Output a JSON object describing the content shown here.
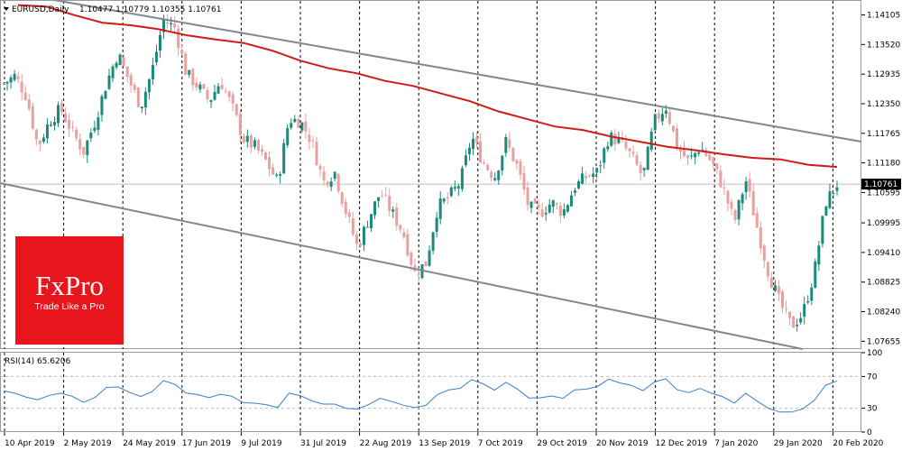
{
  "header": {
    "symbol": "EURUSD,Daily",
    "ohlc": "1.10477 1.10779 1.10355 1.10761"
  },
  "rsi_label": "RSI(14) 65.6206",
  "current_price_label": "1.10761",
  "logo": {
    "name": "FxPro",
    "tagline": "Trade Like a Pro",
    "color": "#e8161c"
  },
  "colors": {
    "bull": "#1a8a7a",
    "bear": "#e8a0a0",
    "ma": "#d11a1a",
    "channel": "#7f8791",
    "rsi": "#3b7fc4"
  },
  "chart_data": [
    {
      "type": "candlestick",
      "x_tick_labels": [
        "10 Apr 2019",
        "2 May 2019",
        "24 May 2019",
        "17 Jun 2019",
        "9 Jul 2019",
        "31 Jul 2019",
        "22 Aug 2019",
        "13 Sep 2019",
        "7 Oct 2019",
        "29 Oct 2019",
        "20 Nov 2019",
        "12 Dec 2019",
        "7 Jan 2020",
        "29 Jan 2020",
        "20 Feb 2020"
      ],
      "y_tick_labels": [
        "1.14105",
        "1.13520",
        "1.12935",
        "1.12350",
        "1.11765",
        "1.11180",
        "1.10595",
        "1.09995",
        "1.09410",
        "1.08825",
        "1.08240",
        "1.07655"
      ],
      "ylim": [
        1.075,
        1.144
      ],
      "close_path": [
        1.1275,
        1.129,
        1.125,
        1.115,
        1.12,
        1.1225,
        1.118,
        1.114,
        1.12,
        1.1275,
        1.1335,
        1.128,
        1.123,
        1.13,
        1.14,
        1.1385,
        1.1295,
        1.127,
        1.124,
        1.128,
        1.123,
        1.1165,
        1.115,
        1.112,
        1.108,
        1.1205,
        1.12,
        1.116,
        1.108,
        1.11,
        1.102,
        1.095,
        1.101,
        1.106,
        1.102,
        1.098,
        1.09,
        1.092,
        1.103,
        1.105,
        1.108,
        1.117,
        1.112,
        1.109,
        1.116,
        1.111,
        1.103,
        1.102,
        1.104,
        1.102,
        1.107,
        1.109,
        1.11,
        1.117,
        1.116,
        1.113,
        1.109,
        1.12,
        1.123,
        1.115,
        1.112,
        1.115,
        1.112,
        1.107,
        1.1,
        1.1085,
        1.099,
        1.09,
        1.084,
        1.0795,
        1.082,
        1.09,
        1.104,
        1.1076
      ],
      "sma": [
        [
          1.143,
          1.1427
        ],
        [
          1.141,
          1.1395
        ],
        [
          1.139,
          1.1382
        ],
        [
          1.137,
          1.1362
        ],
        [
          1.1355,
          1.134
        ],
        [
          1.132,
          1.1305
        ],
        [
          1.1295,
          1.128
        ],
        [
          1.127,
          1.1255
        ],
        [
          1.124,
          1.122
        ],
        [
          1.1205,
          1.119
        ],
        [
          1.1183,
          1.117
        ],
        [
          1.116,
          1.115
        ],
        [
          1.1143,
          1.1135
        ],
        [
          1.1128,
          1.1125
        ],
        [
          1.1114,
          1.111
        ]
      ],
      "channel_upper": [
        [
          1.144,
          1.143
        ],
        [
          1.1165,
          1.116
        ]
      ],
      "channel_lower": [
        [
          1.1078,
          1.1075
        ],
        [
          1.0755,
          1.075
        ]
      ],
      "current_price": 1.10761
    },
    {
      "type": "line",
      "name": "RSI(14) 65.6206",
      "y_tick_labels": [
        "100",
        "70",
        "30",
        "0"
      ],
      "ylim": [
        0,
        100
      ],
      "levels": [
        70,
        30
      ],
      "values": [
        52,
        48,
        45,
        40,
        46,
        50,
        44,
        38,
        44,
        55,
        58,
        50,
        44,
        52,
        64,
        60,
        50,
        46,
        44,
        48,
        44,
        38,
        36,
        34,
        32,
        48,
        46,
        40,
        34,
        36,
        30,
        28,
        36,
        42,
        38,
        35,
        30,
        34,
        48,
        52,
        56,
        66,
        60,
        54,
        62,
        54,
        44,
        42,
        46,
        43,
        52,
        55,
        57,
        66,
        63,
        58,
        52,
        64,
        66,
        54,
        50,
        54,
        50,
        44,
        36,
        50,
        38,
        30,
        26,
        24,
        30,
        40,
        58,
        65.6
      ]
    }
  ]
}
